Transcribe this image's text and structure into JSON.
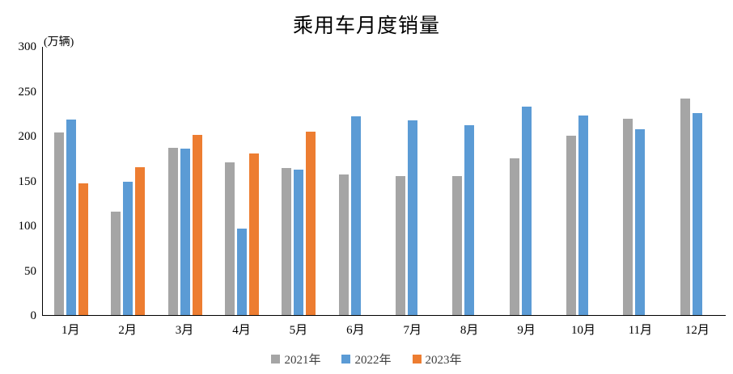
{
  "chart_data": {
    "type": "bar",
    "title": "乘用车月度销量",
    "unit_label": "(万辆)",
    "categories": [
      "1月",
      "2月",
      "3月",
      "4月",
      "5月",
      "6月",
      "7月",
      "8月",
      "9月",
      "10月",
      "11月",
      "12月"
    ],
    "series": [
      {
        "name": "2021年",
        "color": "#A5A5A5",
        "values": [
          204.5,
          115.6,
          187.4,
          170.4,
          164.6,
          156.9,
          155.1,
          155.2,
          175.1,
          200.7,
          219.2,
          242.2
        ]
      },
      {
        "name": "2022年",
        "color": "#5B9BD5",
        "values": [
          218.6,
          148.7,
          186.4,
          96.5,
          162.3,
          222.2,
          217.4,
          212.5,
          233.2,
          223.1,
          207.5,
          226.3
        ]
      },
      {
        "name": "2023年",
        "color": "#ED7D31",
        "values": [
          146.9,
          165.3,
          201.7,
          181.1,
          205.1,
          null,
          null,
          null,
          null,
          null,
          null,
          null
        ]
      }
    ],
    "ylabel": "",
    "xlabel": "",
    "ylim": [
      0,
      300
    ],
    "yticks": [
      0,
      50,
      100,
      150,
      200,
      250,
      300
    ],
    "grid": false,
    "legend_position": "bottom",
    "axis_color": "#000000",
    "background_color": "#FFFFFF"
  }
}
